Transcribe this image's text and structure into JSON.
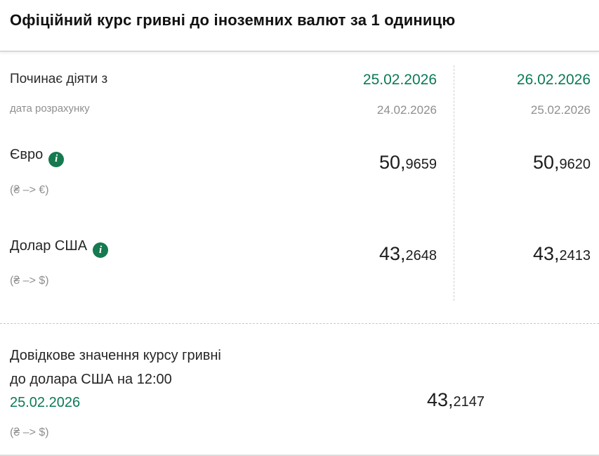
{
  "colors": {
    "accent_green_text": "#0a7a57",
    "info_icon_green": "#157a4f"
  },
  "title": "Офіційний курс гривні до іноземних валют за 1 одиницю",
  "rate_table": {
    "effective_label": "Починає діяти з",
    "calc_label": "дата розрахунку",
    "columns": [
      {
        "effective_date": "25.02.2026",
        "calc_date": "24.02.2026"
      },
      {
        "effective_date": "26.02.2026",
        "calc_date": "25.02.2026"
      }
    ],
    "rows": [
      {
        "currency": "Євро",
        "note": "(₴ –> €)",
        "values": [
          {
            "int_part": "50,",
            "frac_part": "9659"
          },
          {
            "int_part": "50,",
            "frac_part": "9620"
          }
        ]
      },
      {
        "currency": "Долар США",
        "note": "(₴ –> $)",
        "values": [
          {
            "int_part": "43,",
            "frac_part": "2648"
          },
          {
            "int_part": "43,",
            "frac_part": "2413"
          }
        ]
      }
    ]
  },
  "reference_section": {
    "heading_line1": "Довідкове значення курсу гривні",
    "heading_line2": "до долара США на 12:00",
    "date": "25.02.2026",
    "note": "(₴ –> $)",
    "value": {
      "int_part": "43,",
      "frac_part": "2147"
    }
  },
  "icons": {
    "info_glyph": "i"
  }
}
